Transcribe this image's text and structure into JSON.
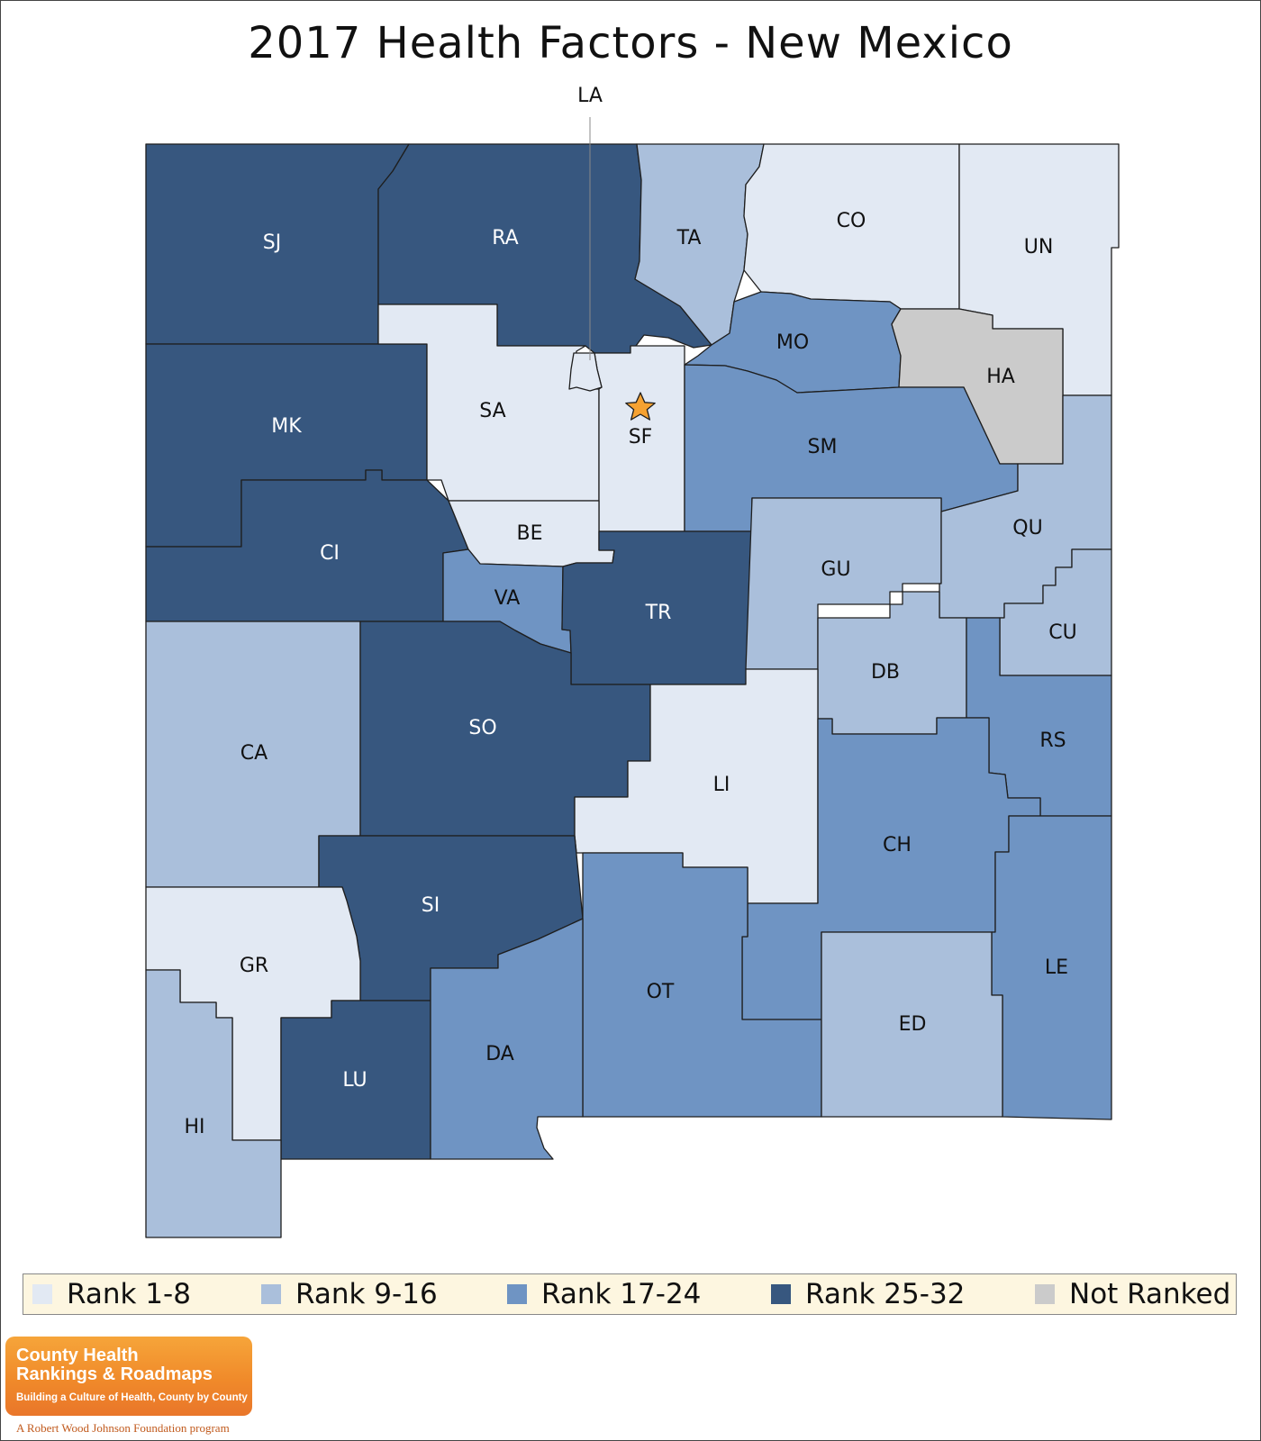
{
  "title": "2017 Health Factors - New Mexico",
  "colors": {
    "rank_1_8": "#e2e9f3",
    "rank_9_16": "#aabfdb",
    "rank_17_24": "#6f94c3",
    "rank_25_32": "#37577f",
    "not_ranked": "#cbcbcb",
    "star": "#f6a231"
  },
  "legend": [
    {
      "label": "Rank 1-8",
      "color": "#e2e9f3"
    },
    {
      "label": "Rank 9-16",
      "color": "#aabfdb"
    },
    {
      "label": "Rank 17-24",
      "color": "#6f94c3"
    },
    {
      "label": "Rank 25-32",
      "color": "#37577f"
    },
    {
      "label": "Not Ranked",
      "color": "#cbcbcb"
    }
  ],
  "counties": [
    {
      "code": "SJ",
      "rank_group": "Rank 25-32"
    },
    {
      "code": "RA",
      "rank_group": "Rank 25-32"
    },
    {
      "code": "TA",
      "rank_group": "Rank 9-16"
    },
    {
      "code": "CO",
      "rank_group": "Rank 1-8"
    },
    {
      "code": "UN",
      "rank_group": "Rank 1-8"
    },
    {
      "code": "MK",
      "rank_group": "Rank 25-32"
    },
    {
      "code": "SA",
      "rank_group": "Rank 1-8"
    },
    {
      "code": "LA",
      "rank_group": "Rank 1-8"
    },
    {
      "code": "SF",
      "rank_group": "Rank 1-8"
    },
    {
      "code": "MO",
      "rank_group": "Rank 17-24"
    },
    {
      "code": "HA",
      "rank_group": "Not Ranked"
    },
    {
      "code": "SM",
      "rank_group": "Rank 17-24"
    },
    {
      "code": "CI",
      "rank_group": "Rank 25-32"
    },
    {
      "code": "BE",
      "rank_group": "Rank 1-8"
    },
    {
      "code": "VA",
      "rank_group": "Rank 17-24"
    },
    {
      "code": "TR",
      "rank_group": "Rank 25-32"
    },
    {
      "code": "GU",
      "rank_group": "Rank 9-16"
    },
    {
      "code": "QU",
      "rank_group": "Rank 9-16"
    },
    {
      "code": "CU",
      "rank_group": "Rank 9-16"
    },
    {
      "code": "DB",
      "rank_group": "Rank 9-16"
    },
    {
      "code": "RS",
      "rank_group": "Rank 17-24"
    },
    {
      "code": "CA",
      "rank_group": "Rank 9-16"
    },
    {
      "code": "SO",
      "rank_group": "Rank 25-32"
    },
    {
      "code": "LI",
      "rank_group": "Rank 1-8"
    },
    {
      "code": "CH",
      "rank_group": "Rank 17-24"
    },
    {
      "code": "SI",
      "rank_group": "Rank 25-32"
    },
    {
      "code": "GR",
      "rank_group": "Rank 1-8"
    },
    {
      "code": "OT",
      "rank_group": "Rank 17-24"
    },
    {
      "code": "LE",
      "rank_group": "Rank 17-24"
    },
    {
      "code": "ED",
      "rank_group": "Rank 9-16"
    },
    {
      "code": "LU",
      "rank_group": "Rank 25-32"
    },
    {
      "code": "DA",
      "rank_group": "Rank 17-24"
    },
    {
      "code": "HI",
      "rank_group": "Rank 9-16"
    }
  ],
  "capital_marker": "star",
  "logo": {
    "line1": "County Health",
    "line2": "Rankings & Roadmaps",
    "tagline": "Building a Culture of Health, County by County",
    "sub": "A Robert Wood Johnson Foundation program"
  }
}
